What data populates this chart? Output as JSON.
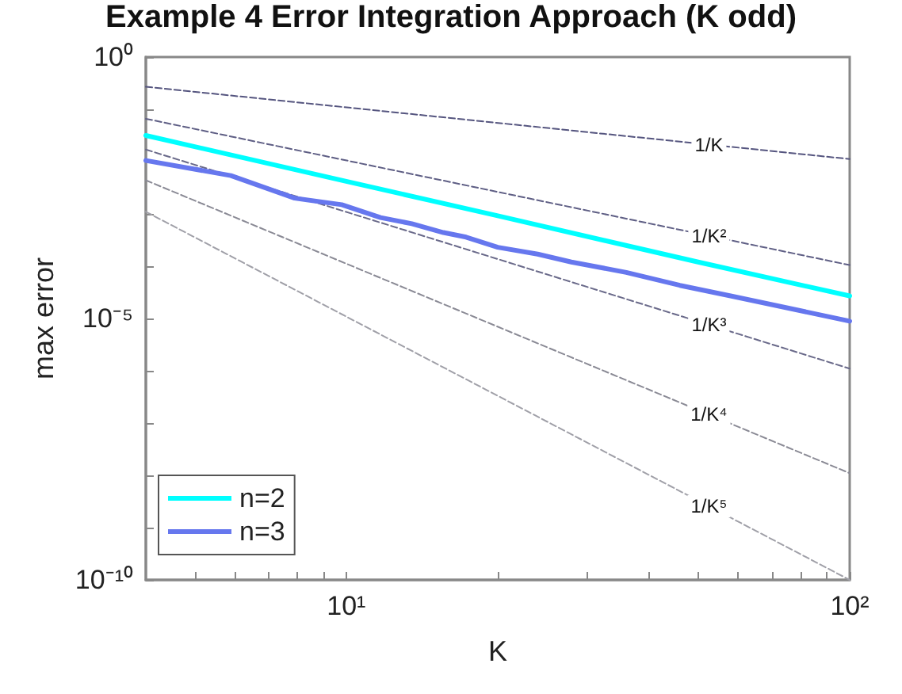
{
  "chart_data": {
    "type": "line",
    "title": "Example 4 Error Integration Approach (K odd)",
    "xlabel": "K",
    "ylabel": "max error",
    "log": "xy",
    "grid": false,
    "legend": "bottom left",
    "marker": "none",
    "xlim": [
      4,
      100
    ],
    "xticks": [
      {
        "value": 5,
        "label": null
      },
      {
        "value": 6,
        "label": null
      },
      {
        "value": 7,
        "label": null
      },
      {
        "value": 8,
        "label": null
      },
      {
        "value": 9,
        "label": null
      },
      {
        "value": 10,
        "label": "10¹"
      },
      {
        "value": 20,
        "label": null
      },
      {
        "value": 30,
        "label": null
      },
      {
        "value": 40,
        "label": null
      },
      {
        "value": 50,
        "label": null
      },
      {
        "value": 60,
        "label": null
      },
      {
        "value": 70,
        "label": null
      },
      {
        "value": 80,
        "label": null
      },
      {
        "value": 90,
        "label": null
      },
      {
        "value": 100,
        "label": "10²"
      }
    ],
    "ylim": [
      1e-10,
      1
    ],
    "yticks": [
      {
        "value": 1e-10,
        "label": "10⁻¹⁰"
      },
      {
        "value": 1e-09,
        "label": null
      },
      {
        "value": 1e-08,
        "label": null
      },
      {
        "value": 1e-07,
        "label": null
      },
      {
        "value": 1e-06,
        "label": null
      },
      {
        "value": 1e-05,
        "label": "10⁻⁵"
      },
      {
        "value": 0.0001,
        "label": null
      },
      {
        "value": 0.001,
        "label": null
      },
      {
        "value": 0.01,
        "label": null
      },
      {
        "value": 0.1,
        "label": null
      },
      {
        "value": 1,
        "label": "10⁰"
      }
    ],
    "series": [
      {
        "name": "n=2",
        "color": "#00ffff",
        "x": [
          4,
          10,
          20,
          50,
          100
        ],
        "values": [
          0.0316,
          0.0042,
          0.00092,
          0.00012,
          2.7e-05
        ]
      },
      {
        "name": "n=3",
        "color": "#6677ee",
        "x": [
          4,
          5.9,
          7.9,
          9.8,
          11.7,
          13.5,
          15.6,
          17.3,
          20,
          24,
          28,
          36,
          46,
          58,
          100
        ],
        "values": [
          0.0105,
          0.0054,
          0.002,
          0.0015,
          0.00085,
          0.00065,
          0.00044,
          0.00036,
          0.00023,
          0.00017,
          0.00012,
          7.6e-05,
          4.3e-05,
          2.7e-05,
          8.9e-06
        ]
      },
      {
        "name": "1/K",
        "color": "#55557f",
        "line_style": "dashed",
        "x": [
          4,
          100
        ],
        "values": [
          0.27,
          0.0112
        ]
      },
      {
        "name": "1/K²",
        "color": "#5f5f85",
        "line_style": "dashed",
        "x": [
          4,
          100
        ],
        "values": [
          0.066,
          0.000105
        ]
      },
      {
        "name": "1/K³",
        "color": "#6a6a8a",
        "line_style": "dashed",
        "x": [
          4,
          100
        ],
        "values": [
          0.017,
          1.1e-06
        ]
      },
      {
        "name": "1/K⁴",
        "color": "#8a8a95",
        "line_style": "dashed",
        "x": [
          4,
          100
        ],
        "values": [
          0.0044,
          1.1e-08
        ]
      },
      {
        "name": "1/K⁵",
        "color": "#a0a0a8",
        "line_style": "dashed",
        "x": [
          4,
          100
        ],
        "values": [
          0.0011,
          1e-10
        ]
      }
    ]
  }
}
